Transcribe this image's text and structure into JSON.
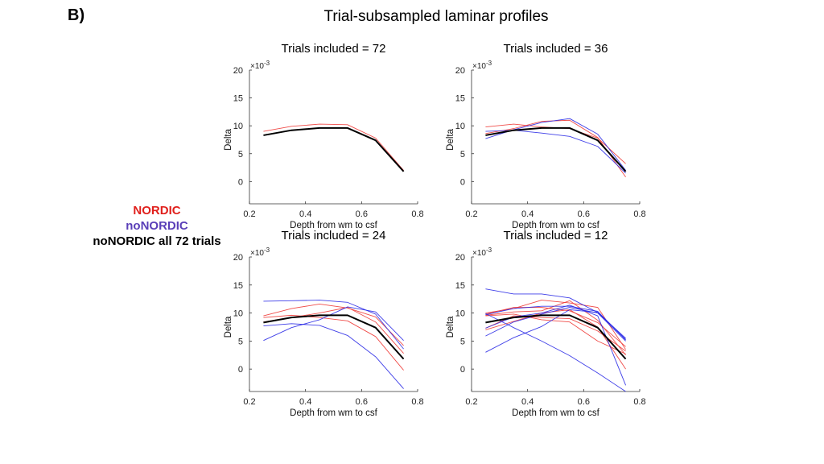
{
  "figure": {
    "panel_label": "B)",
    "title": "Trial-subsampled laminar profiles"
  },
  "legend": {
    "entries": [
      {
        "label": "NORDIC",
        "color": "#e0201c"
      },
      {
        "label": "noNORDIC",
        "color": "#5a3fb8"
      },
      {
        "label": "noNORDIC all 72 trials",
        "color": "#000000"
      }
    ]
  },
  "chart_data": [
    {
      "type": "line",
      "title": "Trials included = 72",
      "xlabel": "Depth from wm to csf",
      "ylabel": "Delta",
      "y_exponent": "×10",
      "y_exponent_power": "-3",
      "xlim": [
        0.2,
        0.8
      ],
      "ylim": [
        -4,
        20
      ],
      "xticks": [
        "0.2",
        "0.4",
        "0.6",
        "0.8"
      ],
      "yticks": [
        "0",
        "5",
        "10",
        "15",
        "20"
      ],
      "x": [
        0.25,
        0.35,
        0.45,
        0.55,
        0.65,
        0.75
      ],
      "series": [
        {
          "name": "NORDIC",
          "color": "#ee3a36",
          "values": [
            9.0,
            9.9,
            10.3,
            10.2,
            7.8,
            2.0
          ]
        },
        {
          "name": "noNORDIC all 72 trials",
          "color": "#000000",
          "values": [
            8.3,
            9.2,
            9.6,
            9.6,
            7.4,
            1.8
          ]
        }
      ]
    },
    {
      "type": "line",
      "title": "Trials included = 36",
      "xlabel": "Depth from wm to csf",
      "ylabel": "",
      "y_exponent": "×10",
      "y_exponent_power": "-3",
      "xlim": [
        0.2,
        0.8
      ],
      "ylim": [
        -4,
        20
      ],
      "xticks": [
        "0.2",
        "0.4",
        "0.6",
        "0.8"
      ],
      "yticks": [
        "0",
        "5",
        "10",
        "15",
        "20"
      ],
      "x": [
        0.25,
        0.35,
        0.45,
        0.55,
        0.65,
        0.75
      ],
      "series": [
        {
          "name": "NORDIC",
          "color": "#ee3a36",
          "values": [
            9.8,
            10.3,
            9.8,
            9.5,
            7.8,
            3.2
          ]
        },
        {
          "name": "NORDIC",
          "color": "#ee3a36",
          "values": [
            8.6,
            9.5,
            10.8,
            11.0,
            7.9,
            0.8
          ]
        },
        {
          "name": "noNORDIC",
          "color": "#2a2ae6",
          "values": [
            9.0,
            9.2,
            8.7,
            8.1,
            6.3,
            1.5
          ]
        },
        {
          "name": "noNORDIC",
          "color": "#2a2ae6",
          "values": [
            7.7,
            9.3,
            10.6,
            11.3,
            8.5,
            2.0
          ]
        },
        {
          "name": "noNORDIC all 72 trials",
          "color": "#000000",
          "values": [
            8.3,
            9.2,
            9.6,
            9.6,
            7.4,
            1.8
          ]
        }
      ]
    },
    {
      "type": "line",
      "title": "Trials included = 24",
      "xlabel": "Depth from wm to csf",
      "ylabel": "Delta",
      "y_exponent": "×10",
      "y_exponent_power": "-3",
      "xlim": [
        0.2,
        0.8
      ],
      "ylim": [
        -4,
        20
      ],
      "xticks": [
        "0.2",
        "0.4",
        "0.6",
        "0.8"
      ],
      "yticks": [
        "0",
        "5",
        "10",
        "15",
        "20"
      ],
      "x": [
        0.25,
        0.35,
        0.45,
        0.55,
        0.65,
        0.75
      ],
      "series": [
        {
          "name": "NORDIC",
          "color": "#ee3a36",
          "values": [
            9.5,
            10.8,
            11.6,
            10.9,
            9.3,
            4.2
          ]
        },
        {
          "name": "NORDIC",
          "color": "#ee3a36",
          "values": [
            9.2,
            9.6,
            9.2,
            8.6,
            5.8,
            -0.2
          ]
        },
        {
          "name": "NORDIC",
          "color": "#ee3a36",
          "values": [
            8.4,
            9.2,
            10.0,
            11.0,
            8.4,
            2.8
          ]
        },
        {
          "name": "noNORDIC",
          "color": "#2a2ae6",
          "values": [
            12.1,
            12.2,
            12.3,
            11.9,
            9.8,
            3.6
          ]
        },
        {
          "name": "noNORDIC",
          "color": "#2a2ae6",
          "values": [
            7.7,
            8.1,
            7.8,
            6.0,
            2.2,
            -3.5
          ]
        },
        {
          "name": "noNORDIC",
          "color": "#2a2ae6",
          "values": [
            5.1,
            7.4,
            8.8,
            11.1,
            10.2,
            5.1
          ]
        },
        {
          "name": "noNORDIC all 72 trials",
          "color": "#000000",
          "values": [
            8.3,
            9.2,
            9.6,
            9.6,
            7.4,
            1.8
          ]
        }
      ]
    },
    {
      "type": "line",
      "title": "Trials included = 12",
      "xlabel": "Depth from wm to csf",
      "ylabel": "",
      "y_exponent": "×10",
      "y_exponent_power": "-3",
      "xlim": [
        0.2,
        0.8
      ],
      "ylim": [
        -4,
        20
      ],
      "xticks": [
        "0.2",
        "0.4",
        "0.6",
        "0.8"
      ],
      "yticks": [
        "0",
        "5",
        "10",
        "15",
        "20"
      ],
      "x": [
        0.25,
        0.35,
        0.45,
        0.55,
        0.65,
        0.75
      ],
      "series": [
        {
          "name": "NORDIC",
          "color": "#ee3a36",
          "values": [
            10.0,
            10.8,
            12.3,
            11.8,
            11.0,
            3.5
          ]
        },
        {
          "name": "NORDIC",
          "color": "#ee3a36",
          "values": [
            9.6,
            10.2,
            10.4,
            12.2,
            8.7,
            2.5
          ]
        },
        {
          "name": "NORDIC",
          "color": "#ee3a36",
          "values": [
            7.0,
            8.5,
            10.0,
            10.6,
            7.5,
            0.0
          ]
        },
        {
          "name": "NORDIC",
          "color": "#ee3a36",
          "values": [
            9.5,
            9.8,
            8.8,
            8.4,
            5.0,
            2.7
          ]
        },
        {
          "name": "NORDIC",
          "color": "#ee3a36",
          "values": [
            7.3,
            9.5,
            9.2,
            9.0,
            6.8,
            3.2
          ]
        },
        {
          "name": "NORDIC",
          "color": "#ee3a36",
          "values": [
            9.8,
            11.0,
            11.0,
            10.4,
            8.3,
            4.0
          ]
        },
        {
          "name": "noNORDIC",
          "color": "#2a2ae6",
          "values": [
            14.3,
            13.4,
            13.4,
            12.7,
            10.1,
            5.5
          ]
        },
        {
          "name": "noNORDIC",
          "color": "#2a2ae6",
          "values": [
            3.0,
            5.6,
            7.6,
            10.6,
            10.1,
            5.3
          ]
        },
        {
          "name": "noNORDIC",
          "color": "#2a2ae6",
          "values": [
            9.9,
            7.4,
            5.0,
            2.4,
            -0.7,
            -4.0
          ]
        },
        {
          "name": "noNORDIC",
          "color": "#2a2ae6",
          "values": [
            5.9,
            8.4,
            9.8,
            11.0,
            10.0,
            5.0
          ]
        },
        {
          "name": "noNORDIC",
          "color": "#2a2ae6",
          "values": [
            7.3,
            9.3,
            10.0,
            11.4,
            9.5,
            -2.9
          ]
        },
        {
          "name": "noNORDIC",
          "color": "#2a2ae6",
          "values": [
            9.7,
            10.8,
            11.2,
            11.2,
            10.3,
            5.2
          ]
        },
        {
          "name": "noNORDIC all 72 trials",
          "color": "#000000",
          "values": [
            8.3,
            9.2,
            9.6,
            9.6,
            7.4,
            1.8
          ]
        }
      ]
    }
  ]
}
